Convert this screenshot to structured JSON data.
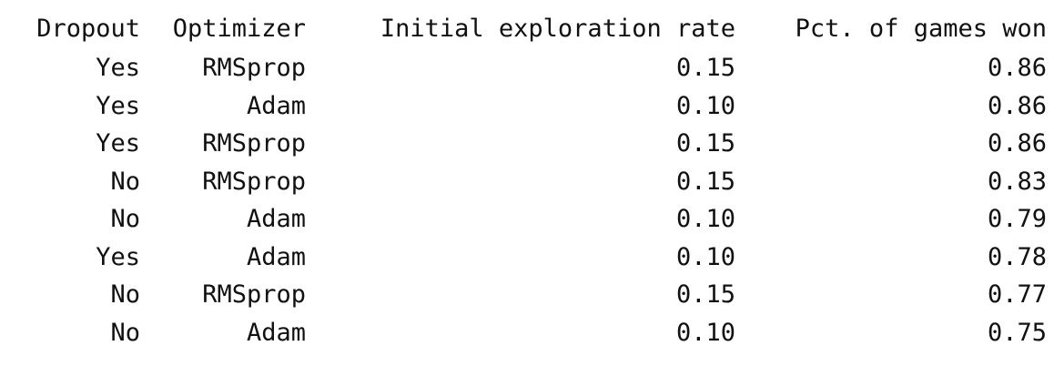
{
  "table": {
    "headers": [
      "Dropout",
      "Optimizer",
      "Initial exploration rate",
      "Pct. of games won"
    ],
    "rows": [
      [
        "Yes",
        "RMSprop",
        "0.15",
        "0.86"
      ],
      [
        "Yes",
        "Adam",
        "0.10",
        "0.86"
      ],
      [
        "Yes",
        "RMSprop",
        "0.15",
        "0.86"
      ],
      [
        "No",
        "RMSprop",
        "0.15",
        "0.83"
      ],
      [
        "No",
        "Adam",
        "0.10",
        "0.79"
      ],
      [
        "Yes",
        "Adam",
        "0.10",
        "0.78"
      ],
      [
        "No",
        "RMSprop",
        "0.15",
        "0.77"
      ],
      [
        "No",
        "Adam",
        "0.10",
        "0.75"
      ]
    ]
  }
}
